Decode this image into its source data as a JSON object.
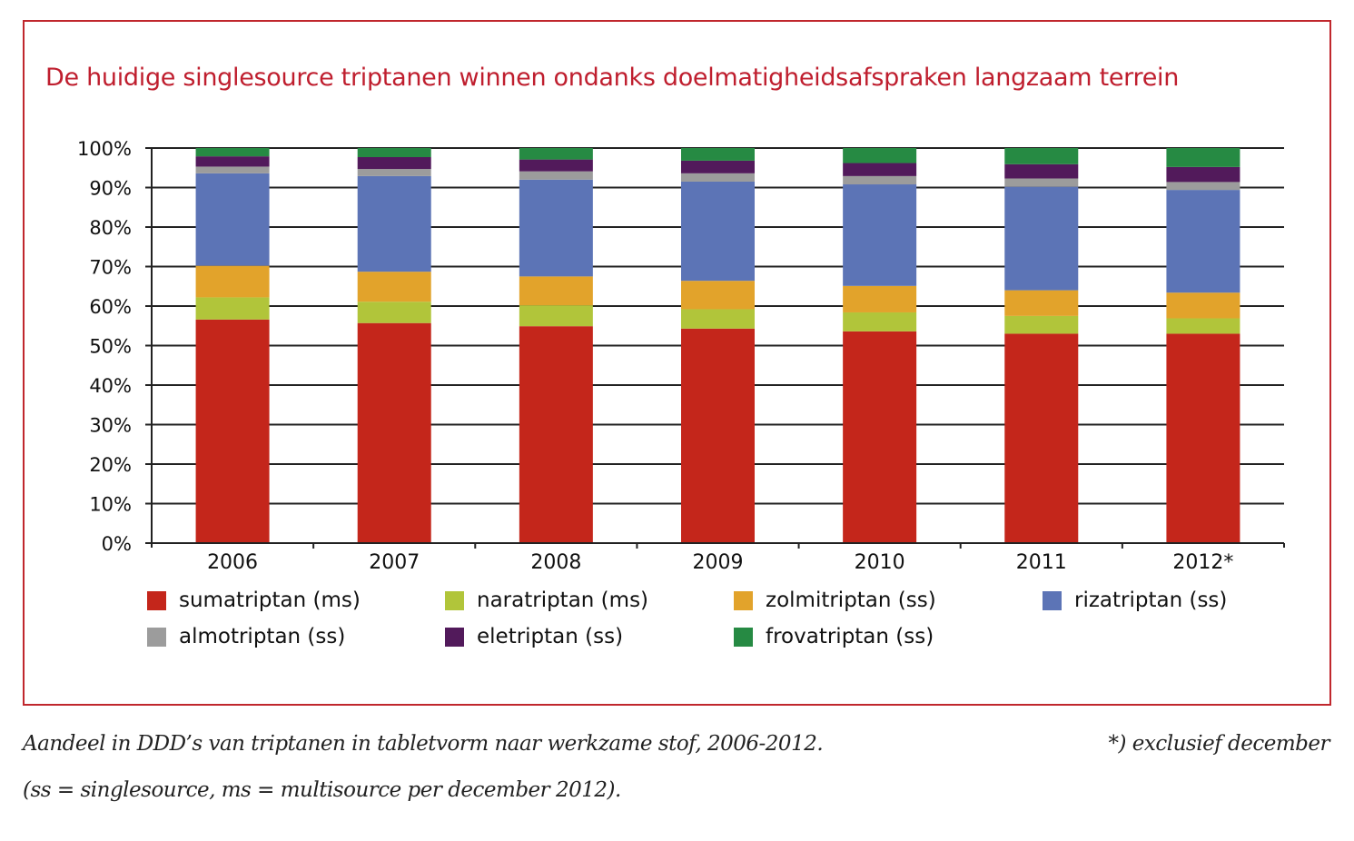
{
  "chart_data": {
    "type": "bar",
    "stacked": true,
    "percent": true,
    "title": "De huidige singlesource triptanen winnen ondanks doelmatigheidsafspraken langzaam terrein",
    "xlabel": "",
    "ylabel": "",
    "ylim": [
      0,
      100
    ],
    "yticks": [
      "0%",
      "10%",
      "20%",
      "30%",
      "40%",
      "50%",
      "60%",
      "70%",
      "80%",
      "90%",
      "100%"
    ],
    "grid": true,
    "legend_position": "bottom",
    "categories": [
      "2006",
      "2007",
      "2008",
      "2009",
      "2010",
      "2011",
      "2012*"
    ],
    "series": [
      {
        "name": "sumatriptan (ms)",
        "color": "#c4261b",
        "values": [
          56.6,
          55.7,
          54.9,
          54.3,
          53.6,
          53.0,
          53.0
        ]
      },
      {
        "name": "naratriptan (ms)",
        "color": "#b1c53a",
        "values": [
          5.6,
          5.4,
          5.3,
          4.9,
          4.8,
          4.5,
          3.9
        ]
      },
      {
        "name": "zolmitriptan (ss)",
        "color": "#e2a32b",
        "values": [
          8.0,
          7.6,
          7.3,
          7.2,
          6.7,
          6.5,
          6.5
        ]
      },
      {
        "name": "rizatriptan (ss)",
        "color": "#5c74b6",
        "values": [
          23.4,
          24.2,
          24.5,
          25.1,
          25.7,
          26.2,
          26.0
        ]
      },
      {
        "name": "almotriptan (ss)",
        "color": "#9c9c9c",
        "values": [
          1.7,
          1.8,
          2.1,
          2.1,
          2.1,
          2.1,
          2.0
        ]
      },
      {
        "name": "eletriptan (ss)",
        "color": "#521a5b",
        "values": [
          2.6,
          3.0,
          3.0,
          3.2,
          3.3,
          3.6,
          3.8
        ]
      },
      {
        "name": "frovatriptan (ss)",
        "color": "#268a43",
        "values": [
          2.1,
          2.3,
          2.9,
          3.2,
          3.8,
          4.1,
          4.8
        ]
      }
    ]
  },
  "caption": {
    "line1": "Aandeel in DDD’s van triptanen in tabletvorm naar werkzame stof, 2006-2012.",
    "line2": "(ss = singlesource, ms = multisource per december 2012).",
    "note": "*) exclusief december"
  },
  "colors": {
    "frame": "#c0272d",
    "title": "#bf1e2e",
    "axis": "#222222"
  }
}
